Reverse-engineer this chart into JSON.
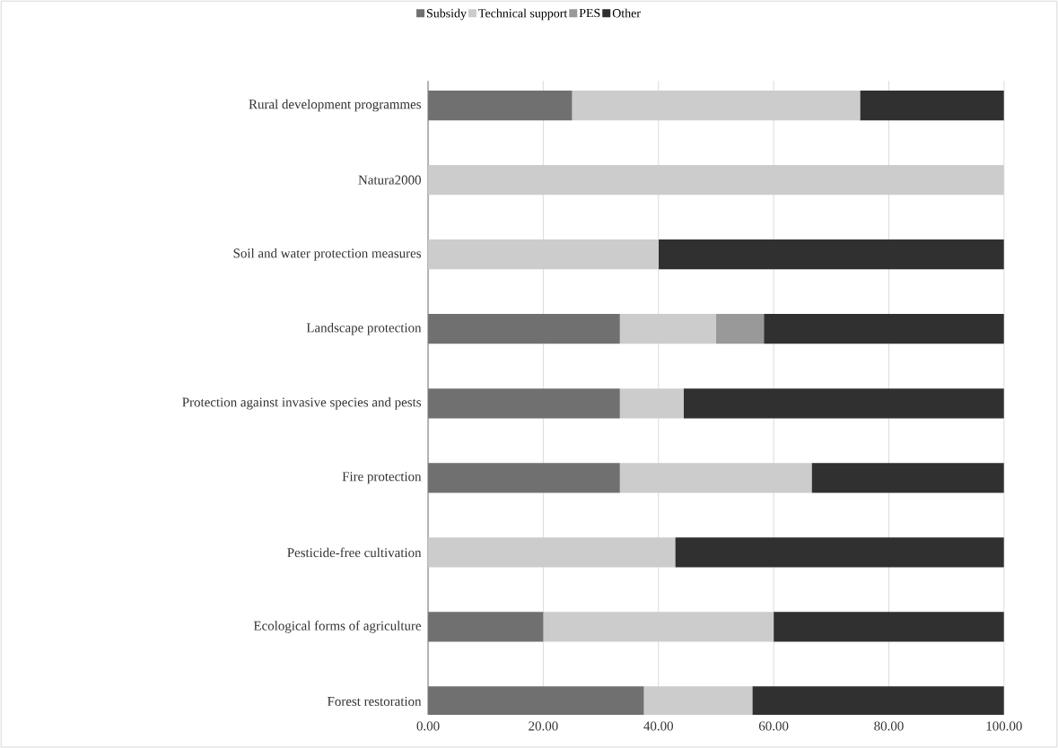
{
  "chart_data": {
    "type": "bar",
    "orientation": "horizontal",
    "stacked": true,
    "categories": [
      "Rural development programmes",
      "Natura2000",
      "Soil and water protection measures",
      "Landscape protection",
      "Protection against invasive species and pests",
      "Fire protection",
      "Pesticide-free cultivation",
      "Ecological forms of agriculture",
      "Forest restoration"
    ],
    "series": [
      {
        "name": "Subsidy",
        "color": "#707070",
        "values": [
          25,
          0,
          0,
          33.3,
          33.3,
          33.3,
          0,
          20,
          37.5
        ]
      },
      {
        "name": "Technical support",
        "color": "#cccccc",
        "values": [
          50,
          100,
          40,
          16.7,
          11.1,
          33.3,
          42.9,
          40,
          18.8
        ]
      },
      {
        "name": "PES",
        "color": "#999999",
        "values": [
          0,
          0,
          0,
          8.3,
          0,
          0,
          0,
          0,
          0
        ]
      },
      {
        "name": "Other",
        "color": "#303030",
        "values": [
          25,
          0,
          60,
          41.7,
          55.6,
          33.4,
          57.1,
          40,
          43.7
        ]
      }
    ],
    "xlim": [
      0,
      100
    ],
    "xticks": [
      {
        "value": 0,
        "label": "0.00"
      },
      {
        "value": 20,
        "label": "20.00"
      },
      {
        "value": 40,
        "label": "40.00"
      },
      {
        "value": 60,
        "label": "60.00"
      },
      {
        "value": 80,
        "label": "80.00"
      },
      {
        "value": 100,
        "label": "100.00"
      }
    ],
    "grid": "x",
    "legend": "top"
  }
}
